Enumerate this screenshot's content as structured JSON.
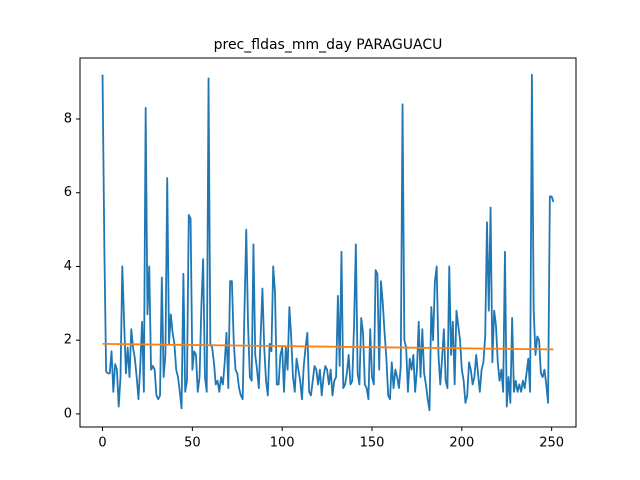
{
  "chart_data": {
    "type": "line",
    "title": "prec_fldas_mm_day PARAGUACU",
    "xlim": [
      -12.55,
      263.55
    ],
    "xticks": [
      0,
      50,
      100,
      150,
      200,
      250
    ],
    "ylim": [
      -0.355,
      9.655
    ],
    "yticks": [
      0,
      2,
      4,
      6,
      8
    ],
    "series": [
      {
        "color": "#1f77b4",
        "values": [
          9.2,
          4.5,
          1.15,
          1.1,
          1.1,
          1.7,
          0.6,
          1.35,
          1.2,
          0.2,
          1.0,
          4.0,
          2.5,
          1.1,
          1.8,
          1.0,
          2.3,
          1.8,
          1.5,
          1.0,
          0.4,
          1.3,
          2.5,
          0.6,
          8.3,
          2.7,
          4.0,
          1.2,
          1.3,
          1.2,
          0.5,
          0.4,
          0.5,
          3.7,
          1.0,
          1.6,
          6.4,
          1.9,
          2.7,
          2.2,
          1.9,
          1.2,
          1.0,
          0.6,
          0.15,
          3.8,
          0.6,
          0.9,
          5.4,
          5.3,
          1.2,
          1.7,
          1.6,
          0.6,
          1.0,
          2.9,
          4.2,
          1.0,
          0.6,
          9.1,
          1.9,
          1.8,
          1.4,
          0.8,
          0.9,
          0.6,
          1.0,
          0.8,
          1.4,
          2.2,
          0.7,
          3.6,
          3.6,
          2.0,
          1.2,
          1.1,
          0.7,
          0.5,
          0.4,
          2.8,
          5.0,
          2.4,
          1.0,
          0.9,
          4.6,
          1.6,
          1.2,
          0.7,
          2.1,
          3.4,
          1.8,
          0.9,
          0.5,
          1.9,
          1.7,
          4.0,
          3.3,
          0.8,
          0.8,
          1.6,
          1.8,
          0.6,
          1.8,
          1.2,
          2.9,
          2.1,
          1.0,
          0.6,
          1.5,
          1.2,
          0.9,
          0.4,
          1.3,
          1.8,
          2.2,
          0.6,
          0.5,
          0.9,
          1.3,
          1.2,
          0.8,
          1.2,
          0.5,
          1.0,
          1.3,
          1.2,
          0.8,
          1.2,
          0.5,
          0.9,
          1.0,
          3.2,
          1.3,
          4.4,
          0.7,
          0.8,
          1.1,
          1.6,
          0.8,
          0.9,
          2.4,
          4.6,
          1.1,
          0.8,
          2.6,
          2.2,
          0.8,
          0.7,
          0.4,
          2.3,
          1.0,
          0.8,
          3.9,
          3.8,
          1.2,
          3.6,
          3.0,
          2.2,
          1.5,
          0.5,
          0.4,
          1.4,
          0.7,
          1.2,
          1.0,
          0.7,
          1.3,
          8.4,
          2.0,
          1.8,
          0.6,
          1.5,
          1.2,
          1.6,
          0.6,
          1.2,
          2.5,
          1.0,
          2.3,
          1.1,
          0.8,
          0.4,
          0.1,
          2.9,
          2.0,
          3.6,
          4.0,
          1.6,
          0.8,
          1.5,
          2.3,
          0.9,
          0.7,
          4.0,
          1.6,
          2.5,
          0.8,
          2.8,
          2.4,
          2.0,
          1.2,
          0.9,
          0.3,
          0.5,
          1.4,
          1.2,
          0.8,
          1.0,
          1.6,
          1.1,
          0.6,
          1.2,
          1.4,
          2.1,
          5.2,
          2.8,
          5.6,
          1.4,
          2.8,
          2.4,
          1.4,
          0.9,
          1.2,
          0.6,
          4.4,
          0.2,
          1.0,
          0.3,
          2.6,
          0.6,
          0.9,
          0.6,
          0.8,
          0.6,
          0.9,
          0.7,
          1.1,
          1.5,
          0.6,
          9.2,
          2.8,
          1.6,
          2.1,
          2.0,
          1.1,
          1.0,
          1.2,
          0.8,
          0.3,
          5.9,
          5.9,
          5.75
        ]
      },
      {
        "color": "#ff7f0e",
        "x": [
          0,
          251
        ],
        "values": [
          1.9,
          1.75
        ]
      }
    ]
  }
}
